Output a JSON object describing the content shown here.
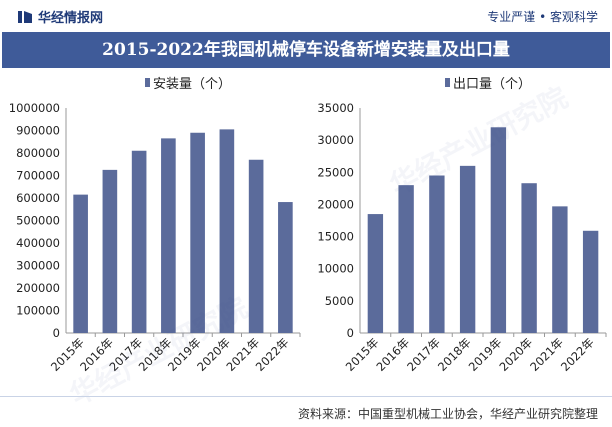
{
  "header": {
    "brand": "华经情报网",
    "tagline": "专业严谨 • 客观科学"
  },
  "title": "2015-2022年我国机械停车设备新增安装量及出口量",
  "colors": {
    "bar": "#5b6b9b",
    "title_bg": "#3f5b99",
    "brand": "#1f3a78"
  },
  "chart_data": [
    {
      "type": "bar",
      "legend": "安装量（个）",
      "categories": [
        "2015年",
        "2016年",
        "2017年",
        "2018年",
        "2019年",
        "2020年",
        "2021年",
        "2022年"
      ],
      "values": [
        615000,
        725000,
        810000,
        865000,
        890000,
        905000,
        770000,
        582000
      ],
      "ylim": [
        0,
        1000000
      ],
      "yticks": [
        0,
        100000,
        200000,
        300000,
        400000,
        500000,
        600000,
        700000,
        800000,
        900000,
        1000000
      ],
      "grid": false,
      "legend_position": "top"
    },
    {
      "type": "bar",
      "legend": "出口量（个）",
      "categories": [
        "2015年",
        "2016年",
        "2017年",
        "2018年",
        "2019年",
        "2020年",
        "2021年",
        "2022年"
      ],
      "values": [
        18500,
        23000,
        24500,
        26000,
        32000,
        23300,
        19700,
        15900
      ],
      "ylim": [
        0,
        35000
      ],
      "yticks": [
        0,
        5000,
        10000,
        15000,
        20000,
        25000,
        30000,
        35000
      ],
      "grid": false,
      "legend_position": "top"
    }
  ],
  "footer": {
    "source": "资料来源：中国重型机械工业协会，华经产业研究院整理"
  },
  "watermark": "华经产业研究院"
}
